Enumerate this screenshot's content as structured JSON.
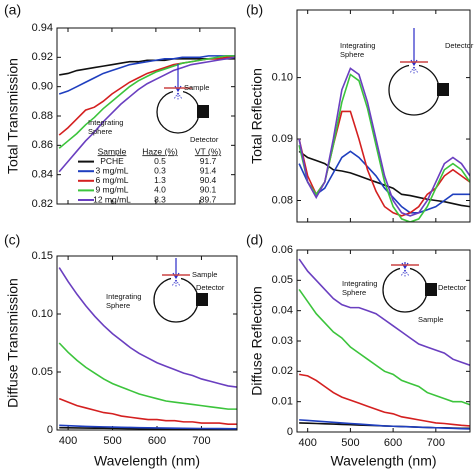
{
  "chart_data": [
    {
      "type": "line",
      "panel_label": "(a)",
      "y_label": "Total Transmission",
      "x": [
        380,
        400,
        420,
        440,
        460,
        480,
        500,
        520,
        540,
        560,
        580,
        600,
        620,
        640,
        660,
        680,
        700,
        720,
        740,
        760,
        780
      ],
      "xlim": [
        375,
        780
      ],
      "xticks": [
        400,
        500,
        600,
        700
      ],
      "show_xtick_labels": false,
      "ylim": [
        0.82,
        0.94
      ],
      "yticks": [
        0.82,
        0.84,
        0.86,
        0.88,
        {
          "value": 0.9,
          "label": "0.90"
        },
        0.92,
        0.94
      ],
      "series": [
        {
          "name": "PCHE",
          "color": "#111111",
          "values": [
            0.908,
            0.909,
            0.911,
            0.912,
            0.913,
            0.914,
            0.915,
            0.916,
            0.917,
            0.917,
            0.918,
            0.918,
            0.918,
            0.919,
            0.919,
            0.919,
            0.919,
            0.919,
            0.919,
            0.919,
            0.919
          ]
        },
        {
          "name": "3 mg/mL",
          "color": "#1f3fbf",
          "values": [
            0.895,
            0.897,
            0.9,
            0.903,
            0.906,
            0.909,
            0.911,
            0.913,
            0.915,
            0.916,
            0.917,
            0.918,
            0.919,
            0.919,
            0.92,
            0.92,
            0.92,
            0.921,
            0.921,
            0.921,
            0.921
          ]
        },
        {
          "name": "6 mg/mL",
          "color": "#d42020",
          "values": [
            0.867,
            0.872,
            0.878,
            0.884,
            0.886,
            0.89,
            0.895,
            0.899,
            0.903,
            0.906,
            0.909,
            0.911,
            0.913,
            0.915,
            0.916,
            0.917,
            0.918,
            0.919,
            0.919,
            0.92,
            0.92
          ]
        },
        {
          "name": "9 mg/mL",
          "color": "#3cc43c",
          "values": [
            0.858,
            0.863,
            0.868,
            0.874,
            0.879,
            0.885,
            0.89,
            0.895,
            0.9,
            0.904,
            0.907,
            0.91,
            0.912,
            0.914,
            0.916,
            0.917,
            0.918,
            0.919,
            0.92,
            0.921,
            0.921
          ]
        },
        {
          "name": "12 mg/mL",
          "color": "#6a3fc0",
          "values": [
            0.842,
            0.849,
            0.856,
            0.863,
            0.869,
            0.876,
            0.882,
            0.888,
            0.893,
            0.898,
            0.902,
            0.905,
            0.908,
            0.911,
            0.913,
            0.915,
            0.916,
            0.917,
            0.918,
            0.919,
            0.92
          ]
        }
      ],
      "legend_table": {
        "headers": [
          "Sample",
          "Haze (%)",
          "VT (%)"
        ],
        "haze": [
          "0.5",
          "0.3",
          "1.3",
          "4.0",
          "8.3"
        ],
        "vt": [
          "91.7",
          "91.4",
          "90.4",
          "90.1",
          "89.7"
        ]
      },
      "inset": {
        "sample": "Sample",
        "sphere": [
          "Integrating",
          "Sphere"
        ],
        "detector": "Detector"
      }
    },
    {
      "type": "line",
      "panel_label": "(b)",
      "y_label": "Total Reflection",
      "x": [
        380,
        400,
        420,
        440,
        460,
        480,
        500,
        520,
        540,
        560,
        580,
        600,
        620,
        640,
        660,
        680,
        700,
        720,
        740,
        760,
        780
      ],
      "xlim": [
        375,
        780
      ],
      "xticks": [
        400,
        500,
        600,
        700
      ],
      "show_xtick_labels": false,
      "ylim": [
        0.0765,
        0.111
      ],
      "yticks": [
        0.08,
        0.09,
        {
          "value": 0.1,
          "label": "0.10"
        }
      ],
      "series": [
        {
          "color": "#111111",
          "values": [
            0.088,
            0.087,
            0.0865,
            0.086,
            0.085,
            0.0848,
            0.0845,
            0.084,
            0.0835,
            0.083,
            0.0825,
            0.082,
            0.081,
            0.0808,
            0.0805,
            0.0802,
            0.08,
            0.0798,
            0.0795,
            0.0792,
            0.079
          ]
        },
        {
          "color": "#1f3fbf",
          "values": [
            0.086,
            0.083,
            0.081,
            0.082,
            0.0845,
            0.087,
            0.088,
            0.087,
            0.0855,
            0.084,
            0.082,
            0.0805,
            0.079,
            0.078,
            0.078,
            0.0785,
            0.079,
            0.08,
            0.081,
            0.081,
            0.081
          ]
        },
        {
          "color": "#d42020",
          "values": [
            0.09,
            0.084,
            0.081,
            0.083,
            0.089,
            0.0945,
            0.0945,
            0.09,
            0.085,
            0.0815,
            0.079,
            0.078,
            0.0775,
            0.078,
            0.079,
            0.081,
            0.082,
            0.084,
            0.085,
            0.084,
            0.083
          ]
        },
        {
          "color": "#3cc43c",
          "values": [
            0.089,
            0.083,
            0.081,
            0.083,
            0.089,
            0.096,
            0.1005,
            0.0995,
            0.095,
            0.089,
            0.083,
            0.079,
            0.077,
            0.0765,
            0.077,
            0.079,
            0.082,
            0.085,
            0.086,
            0.085,
            0.083
          ]
        },
        {
          "color": "#6a3fc0",
          "values": [
            0.09,
            0.083,
            0.0805,
            0.083,
            0.09,
            0.098,
            0.1015,
            0.1005,
            0.096,
            0.09,
            0.084,
            0.08,
            0.078,
            0.0775,
            0.078,
            0.08,
            0.083,
            0.086,
            0.087,
            0.086,
            0.084
          ]
        }
      ],
      "inset": {
        "sample": null,
        "sphere": [
          "Integrating",
          "Sphere"
        ],
        "detector": "Detector"
      }
    },
    {
      "type": "line",
      "panel_label": "(c)",
      "y_label": "Diffuse Transmission",
      "x_label": "Wavelength (nm)",
      "x": [
        380,
        400,
        420,
        440,
        460,
        480,
        500,
        520,
        540,
        560,
        580,
        600,
        620,
        640,
        660,
        680,
        700,
        720,
        740,
        760,
        780
      ],
      "xlim": [
        375,
        780
      ],
      "xticks": [
        400,
        500,
        600,
        700
      ],
      "show_xtick_labels": true,
      "ylim": [
        0,
        0.15
      ],
      "yticks": [
        0,
        0.05,
        {
          "value": 0.1,
          "label": "0.10"
        },
        0.15
      ],
      "series": [
        {
          "color": "#111111",
          "values": [
            0.002,
            0.0019,
            0.0018,
            0.0017,
            0.0016,
            0.0015,
            0.0014,
            0.0013,
            0.0012,
            0.0011,
            0.001,
            0.001,
            0.0009,
            0.0009,
            0.0008,
            0.0008,
            0.0007,
            0.0007,
            0.0006,
            0.0006,
            0.0005
          ]
        },
        {
          "color": "#1f3fbf",
          "values": [
            0.004,
            0.0037,
            0.0034,
            0.0031,
            0.0029,
            0.0027,
            0.0025,
            0.0023,
            0.0022,
            0.002,
            0.0019,
            0.0018,
            0.0017,
            0.0016,
            0.0015,
            0.0014,
            0.0013,
            0.0013,
            0.0012,
            0.0011,
            0.001
          ]
        },
        {
          "color": "#d42020",
          "values": [
            0.027,
            0.024,
            0.021,
            0.019,
            0.017,
            0.015,
            0.014,
            0.012,
            0.011,
            0.01,
            0.009,
            0.009,
            0.008,
            0.008,
            0.007,
            0.007,
            0.006,
            0.006,
            0.006,
            0.005,
            0.005
          ]
        },
        {
          "color": "#3cc43c",
          "values": [
            0.075,
            0.067,
            0.06,
            0.054,
            0.049,
            0.044,
            0.04,
            0.037,
            0.034,
            0.031,
            0.029,
            0.027,
            0.025,
            0.024,
            0.023,
            0.022,
            0.021,
            0.02,
            0.019,
            0.018,
            0.018
          ]
        },
        {
          "color": "#6a3fc0",
          "values": [
            0.14,
            0.128,
            0.117,
            0.107,
            0.098,
            0.09,
            0.083,
            0.077,
            0.071,
            0.066,
            0.062,
            0.058,
            0.055,
            0.052,
            0.049,
            0.047,
            0.044,
            0.042,
            0.04,
            0.038,
            0.037
          ]
        }
      ],
      "inset": {
        "sample": "Sample",
        "sphere": [
          "Integrating",
          "Sphere"
        ],
        "detector": "Detector"
      }
    },
    {
      "type": "line",
      "panel_label": "(d)",
      "y_label": "Diffuse Reflection",
      "x_label": "Wavelength (nm)",
      "x": [
        380,
        400,
        420,
        440,
        460,
        480,
        500,
        520,
        540,
        560,
        580,
        600,
        620,
        640,
        660,
        680,
        700,
        720,
        740,
        760,
        780
      ],
      "xlim": [
        375,
        780
      ],
      "xticks": [
        400,
        500,
        600,
        700
      ],
      "show_xtick_labels": true,
      "ylim": [
        0,
        0.06
      ],
      "yticks": [
        0,
        0.01,
        0.02,
        0.03,
        0.04,
        0.05,
        0.06
      ],
      "series": [
        {
          "color": "#111111",
          "values": [
            0.003,
            0.0029,
            0.0028,
            0.0027,
            0.0026,
            0.0025,
            0.0024,
            0.0023,
            0.0022,
            0.0021,
            0.002,
            0.0019,
            0.0018,
            0.0017,
            0.0016,
            0.0015,
            0.0014,
            0.0014,
            0.0013,
            0.0012,
            0.0012
          ]
        },
        {
          "color": "#1f3fbf",
          "values": [
            0.004,
            0.0038,
            0.0036,
            0.0034,
            0.0032,
            0.003,
            0.0028,
            0.0026,
            0.0024,
            0.0022,
            0.002,
            0.0019,
            0.0018,
            0.0017,
            0.0016,
            0.0015,
            0.0014,
            0.0013,
            0.0012,
            0.0011,
            0.001
          ]
        },
        {
          "color": "#d42020",
          "values": [
            0.019,
            0.0185,
            0.017,
            0.015,
            0.013,
            0.0115,
            0.0105,
            0.0095,
            0.0085,
            0.0075,
            0.0065,
            0.006,
            0.005,
            0.0045,
            0.004,
            0.0035,
            0.003,
            0.0028,
            0.0025,
            0.0022,
            0.002
          ]
        },
        {
          "color": "#3cc43c",
          "values": [
            0.047,
            0.043,
            0.039,
            0.036,
            0.033,
            0.031,
            0.028,
            0.026,
            0.024,
            0.022,
            0.02,
            0.019,
            0.017,
            0.016,
            0.015,
            0.013,
            0.012,
            0.011,
            0.01,
            0.01,
            0.009
          ]
        },
        {
          "color": "#6a3fc0",
          "values": [
            0.057,
            0.053,
            0.05,
            0.047,
            0.044,
            0.042,
            0.041,
            0.041,
            0.04,
            0.039,
            0.037,
            0.035,
            0.033,
            0.031,
            0.029,
            0.028,
            0.027,
            0.026,
            0.024,
            0.023,
            0.022
          ]
        }
      ],
      "inset": {
        "sample": "Sample",
        "sphere": [
          "Integrating",
          "Sphere"
        ],
        "detector": "Detector"
      }
    }
  ]
}
